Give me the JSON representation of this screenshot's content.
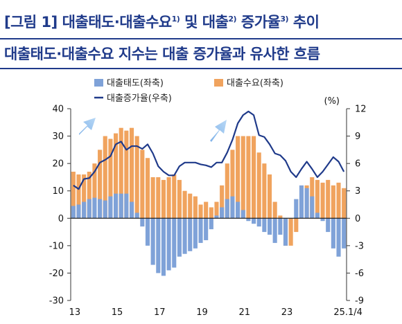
{
  "title": {
    "line1_parts": [
      {
        "text": "[그림 1] 대출태도·대출수요",
        "sup": false
      },
      {
        "text": "1)",
        "sup": true
      },
      {
        "text": " 및 대출",
        "sup": false
      },
      {
        "text": "2)",
        "sup": true
      },
      {
        "text": " 증가율",
        "sup": false
      },
      {
        "text": "3)",
        "sup": true
      },
      {
        "text": " 추이",
        "sup": false
      }
    ],
    "line2": "대출태도·대출수요 지수는 대출 증가율과 유사한 흐름"
  },
  "chart_data": {
    "type": "bar",
    "bar_mode": "overlay",
    "x_tick_labels": [
      "13",
      "15",
      "17",
      "19",
      "21",
      "23",
      "25.1/4"
    ],
    "unit_label": "(%)",
    "left_axis": {
      "ylim": [
        -30,
        40
      ],
      "ticks": [
        40,
        30,
        20,
        10,
        0,
        -10,
        -20,
        -30
      ]
    },
    "right_axis": {
      "ylim": [
        -9,
        12
      ],
      "ticks": [
        12,
        9,
        6,
        3,
        0,
        -3,
        -6,
        -9
      ]
    },
    "x_start": "2013Q1",
    "series": [
      {
        "name": "대출태도(좌축)",
        "kind": "bar",
        "axis": "left",
        "color": "#7fa2d8",
        "values": [
          4.5,
          5,
          6,
          7,
          7.5,
          7,
          6.5,
          8,
          9,
          9,
          9,
          6,
          2,
          -3,
          -10,
          -17,
          -20,
          -21,
          -19,
          -18,
          -14,
          -13,
          -12,
          -11,
          -9,
          -8,
          -4,
          1,
          4,
          7,
          8,
          6,
          3,
          -1,
          -2,
          -3,
          -5,
          -6,
          -9,
          -6,
          -10,
          0,
          7,
          12,
          11,
          8,
          2,
          -1,
          -5,
          -11,
          -14,
          -11
        ]
      },
      {
        "name": "대출수요(좌축)",
        "kind": "bar",
        "axis": "left",
        "color": "#f0a35e",
        "values": [
          17,
          16,
          16,
          17,
          20,
          25,
          30,
          29,
          31,
          33,
          32,
          33,
          30,
          25,
          22,
          15,
          15,
          14,
          15,
          16,
          14,
          10,
          9,
          8,
          5,
          6,
          4,
          6,
          12,
          20,
          25,
          30,
          30,
          30,
          30,
          24,
          20,
          16,
          6,
          1,
          -10,
          -10,
          -5,
          7,
          12,
          15,
          14,
          13,
          14,
          12,
          13,
          11
        ]
      },
      {
        "name": "대출증가율(우축)",
        "kind": "line",
        "axis": "right",
        "color": "#1f3a8a",
        "values": [
          3.6,
          3.2,
          4.3,
          4.4,
          5.1,
          6.1,
          6.4,
          6.8,
          8.1,
          8.4,
          7.5,
          7.9,
          7.9,
          7.6,
          8.1,
          7.1,
          5.7,
          5.1,
          4.7,
          4.7,
          5.7,
          6.1,
          6.1,
          6.1,
          5.9,
          5.8,
          5.6,
          6.1,
          6.1,
          7.2,
          8.6,
          10.4,
          11.3,
          11.7,
          11.3,
          9.1,
          8.9,
          8.1,
          7.1,
          6.9,
          6.3,
          5.1,
          4.5,
          5.4,
          6.2,
          5.4,
          4.5,
          5.1,
          5.9,
          6.7,
          6.2,
          5.1
        ]
      }
    ]
  }
}
